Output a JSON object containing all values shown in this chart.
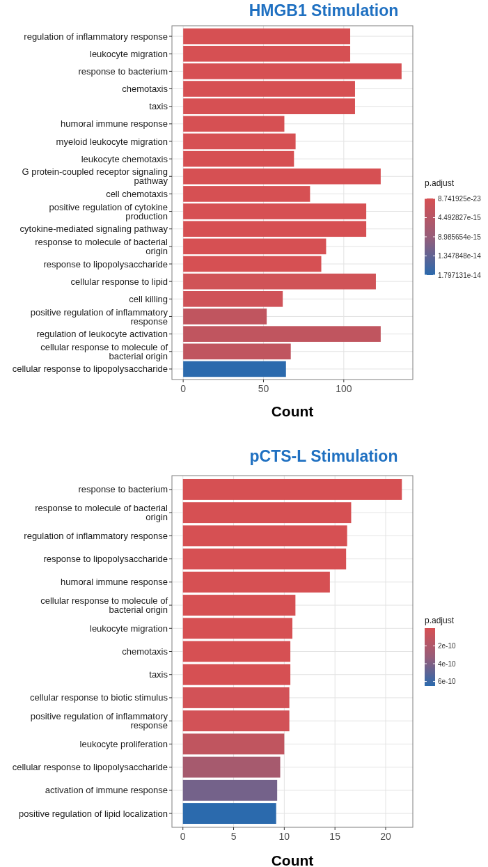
{
  "chart_data": [
    {
      "type": "bar",
      "orientation": "horizontal",
      "title": "HMGB1 Stimulation",
      "xlabel": "Count",
      "clabel": "p.adjust",
      "categories": [
        "regulation of inflammatory response",
        "leukocyte migration",
        "response to bacterium",
        "chemotaxis",
        "taxis",
        "humoral immune response",
        "myeloid leukocyte migration",
        "leukocyte chemotaxis",
        "G protein-coupled receptor signaling pathway",
        "cell chemotaxis",
        "positive regulation of cytokine production",
        "cytokine-mediated signaling pathway",
        "response to molecule of bacterial origin",
        "response to lipopolysaccharide",
        "cellular response to lipid",
        "cell killing",
        "positive regulation of inflammatory response",
        "regulation of leukocyte activation",
        "cellular response to molecule of bacterial origin",
        "cellular response to lipopolysaccharide"
      ],
      "values": [
        104,
        104,
        136,
        107,
        107,
        63,
        70,
        69,
        123,
        79,
        114,
        114,
        89,
        86,
        120,
        62,
        52,
        123,
        67,
        64
      ],
      "colors": [
        "#d65053",
        "#d65053",
        "#d65053",
        "#d65053",
        "#d65053",
        "#d65053",
        "#d65053",
        "#d65053",
        "#d65053",
        "#d65053",
        "#d65053",
        "#d65053",
        "#d65053",
        "#d65053",
        "#d05357",
        "#cf5359",
        "#c0555f",
        "#c0555f",
        "#c0555f",
        "#2b6aad"
      ],
      "xlim": [
        -7,
        143
      ],
      "xticks": [
        0,
        50,
        100
      ],
      "clim": [
        8.741925e-23,
        1.797131e-14
      ],
      "cticks": [
        {
          "value": 8.741925e-23,
          "label": "8.741925e-23"
        },
        {
          "value": 4.492827e-15,
          "label": "4.492827e-15"
        },
        {
          "value": 8.985654e-15,
          "label": "8.985654e-15"
        },
        {
          "value": 1.347848e-14,
          "label": "1.347848e-14"
        },
        {
          "value": 1.797131e-14,
          "label": "1.797131e-14"
        }
      ],
      "grid": true
    },
    {
      "type": "bar",
      "orientation": "horizontal",
      "title": "pCTS-L Stimulation",
      "xlabel": "Count",
      "clabel": "p.adjust",
      "categories": [
        "response to bacterium",
        "response to molecule of bacterial origin",
        "regulation of inflammatory response",
        "response to lipopolysaccharide",
        "humoral immune response",
        "cellular response to molecule of bacterial origin",
        "leukocyte migration",
        "chemotaxis",
        "taxis",
        "cellular response to biotic stimulus",
        "positive regulation of inflammatory response",
        "leukocyte proliferation",
        "cellular response to lipopolysaccharide",
        "activation of immune response",
        "positive regulation of lipid localization"
      ],
      "values": [
        21.6,
        16.6,
        16.2,
        16.1,
        14.5,
        11.1,
        10.8,
        10.6,
        10.6,
        10.5,
        10.5,
        10,
        9.6,
        9.3,
        9.2
      ],
      "colors": [
        "#d65053",
        "#d65053",
        "#d65053",
        "#d65053",
        "#d65053",
        "#d65053",
        "#d65053",
        "#d65053",
        "#d65053",
        "#d25257",
        "#d25257",
        "#c0555f",
        "#a65a6e",
        "#74628a",
        "#2b6aad"
      ],
      "xlim": [
        -1.08,
        22.68
      ],
      "xticks": [
        0,
        5,
        10,
        15,
        20
      ],
      "clim": [
        0,
        6.5e-10
      ],
      "cticks": [
        {
          "value": 2e-10,
          "label": "2e-10"
        },
        {
          "value": 4e-10,
          "label": "4e-10"
        },
        {
          "value": 6e-10,
          "label": "6e-10"
        }
      ],
      "grid": true
    }
  ]
}
